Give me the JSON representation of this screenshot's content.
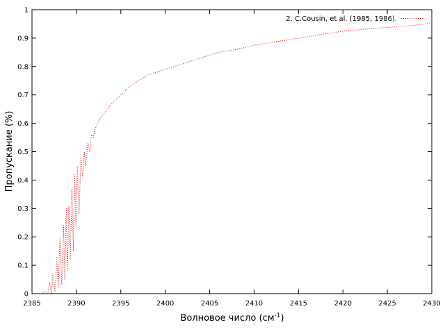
{
  "chart_data": {
    "type": "line",
    "title": "",
    "xlabel": "Волновое число (см",
    "xlabel_sup": "-1",
    "xlabel_close": ")",
    "ylabel": "Пропускание (%)",
    "xlim": [
      2385,
      2430
    ],
    "ylim": [
      0,
      1
    ],
    "x_ticks": [
      2385,
      2390,
      2395,
      2400,
      2405,
      2410,
      2415,
      2420,
      2425,
      2430
    ],
    "y_ticks": [
      0,
      0.1,
      0.2,
      0.3,
      0.4,
      0.5,
      0.6,
      0.7,
      0.8,
      0.9,
      1
    ],
    "y_tick_labels": [
      "0",
      "0.1",
      "0.2",
      "0.3",
      "0.4",
      "0.5",
      "0.6",
      "0.7",
      "0.8",
      "0.9",
      "1"
    ],
    "grid": false,
    "legend_position": "top-right",
    "series": [
      {
        "name": "2. C.Cousin, et al. (1985, 1986).",
        "color": "#ff0000",
        "line_style": "dotted",
        "x": [
          2386.0,
          2386.5,
          2386.8,
          2387.0,
          2387.2,
          2387.35,
          2387.6,
          2387.8,
          2387.95,
          2388.15,
          2388.35,
          2388.55,
          2388.7,
          2388.85,
          2389.0,
          2389.15,
          2389.3,
          2389.5,
          2389.65,
          2389.8,
          2389.95,
          2390.1,
          2390.3,
          2390.5,
          2390.7,
          2390.9,
          2391.05,
          2391.3,
          2391.5,
          2391.7,
          2391.9,
          2392.1,
          2392.4,
          2392.7,
          2393.0,
          2393.5,
          2394.0,
          2395.0,
          2396.0,
          2397.0,
          2398.0,
          2399.0,
          2400.0,
          2402.0,
          2404.0,
          2406.0,
          2408.0,
          2410.0,
          2412.0,
          2414.0,
          2416.0,
          2418.0,
          2420.0,
          2422.0,
          2424.0,
          2426.0,
          2428.0,
          2430.0
        ],
        "y": [
          0.0,
          0.01,
          0.0,
          0.04,
          0.0,
          0.07,
          0.01,
          0.13,
          0.02,
          0.2,
          0.03,
          0.24,
          0.05,
          0.3,
          0.08,
          0.31,
          0.12,
          0.37,
          0.15,
          0.42,
          0.23,
          0.45,
          0.28,
          0.48,
          0.41,
          0.5,
          0.45,
          0.53,
          0.5,
          0.56,
          0.55,
          0.58,
          0.6,
          0.62,
          0.63,
          0.65,
          0.67,
          0.7,
          0.73,
          0.75,
          0.77,
          0.78,
          0.79,
          0.81,
          0.83,
          0.85,
          0.86,
          0.875,
          0.885,
          0.895,
          0.905,
          0.915,
          0.925,
          0.93,
          0.935,
          0.94,
          0.945,
          0.953
        ]
      }
    ]
  }
}
